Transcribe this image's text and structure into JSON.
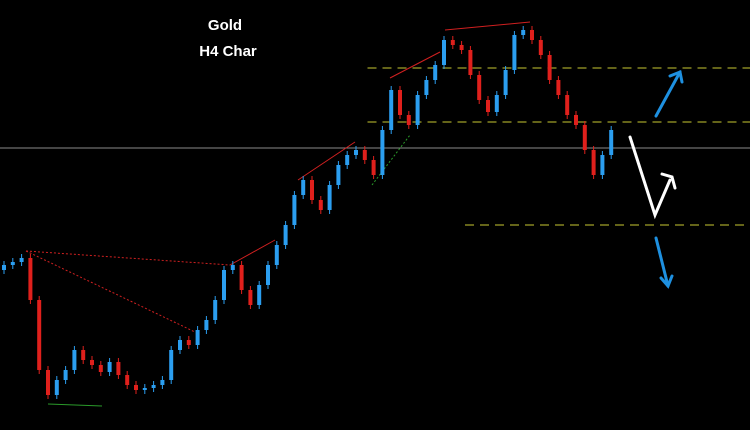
{
  "chart_data": {
    "type": "candlestick",
    "title": "Gold",
    "subtitle": "H4 Char",
    "ylim": [
      0,
      430
    ],
    "up_color": "#2b9ef0",
    "down_color": "#e0201c",
    "open": [
      160,
      165,
      168,
      172,
      130,
      60,
      35,
      50,
      60,
      80,
      70,
      65,
      58,
      68,
      55,
      45,
      40,
      42,
      45,
      50,
      80,
      90,
      85,
      100,
      110,
      130,
      160,
      165,
      140,
      125,
      145,
      165,
      185,
      205,
      235,
      250,
      230,
      220,
      245,
      265,
      275,
      280,
      270,
      255,
      300,
      340,
      315,
      305,
      335,
      350,
      365,
      390,
      385,
      380,
      355,
      330,
      318,
      335,
      360,
      395,
      400,
      390,
      375,
      350,
      335,
      315,
      305,
      280,
      255,
      275
    ],
    "high": [
      169,
      172,
      176,
      176,
      134,
      64,
      54,
      64,
      84,
      84,
      74,
      69,
      72,
      72,
      59,
      49,
      46,
      49,
      54,
      84,
      94,
      94,
      104,
      114,
      134,
      164,
      169,
      169,
      144,
      149,
      169,
      189,
      209,
      239,
      254,
      254,
      234,
      249,
      269,
      279,
      284,
      284,
      274,
      304,
      344,
      344,
      319,
      339,
      354,
      369,
      394,
      394,
      389,
      384,
      359,
      334,
      339,
      364,
      399,
      404,
      404,
      394,
      379,
      354,
      339,
      319,
      309,
      284,
      279,
      304
    ],
    "low": [
      156,
      161,
      164,
      126,
      56,
      31,
      31,
      46,
      56,
      66,
      61,
      54,
      54,
      51,
      41,
      36,
      36,
      38,
      41,
      46,
      76,
      81,
      81,
      96,
      106,
      126,
      156,
      136,
      121,
      121,
      141,
      161,
      181,
      201,
      231,
      226,
      216,
      216,
      241,
      261,
      271,
      266,
      251,
      251,
      296,
      311,
      301,
      301,
      331,
      346,
      361,
      381,
      376,
      351,
      326,
      314,
      314,
      331,
      356,
      391,
      386,
      371,
      346,
      331,
      311,
      301,
      276,
      251,
      251,
      271
    ],
    "close": [
      165,
      168,
      172,
      130,
      60,
      35,
      50,
      60,
      80,
      70,
      65,
      58,
      68,
      55,
      45,
      40,
      42,
      45,
      50,
      80,
      90,
      85,
      100,
      110,
      130,
      160,
      165,
      140,
      125,
      145,
      165,
      185,
      205,
      235,
      250,
      230,
      220,
      245,
      265,
      275,
      280,
      270,
      255,
      300,
      340,
      315,
      305,
      335,
      350,
      365,
      390,
      385,
      380,
      355,
      330,
      318,
      335,
      360,
      395,
      400,
      390,
      375,
      350,
      335,
      315,
      305,
      280,
      255,
      275,
      300
    ],
    "levels": [
      {
        "value": 362,
        "color": "#c8c832",
        "dashed": true,
        "start": 0.49
      },
      {
        "value": 308,
        "color": "#c8c832",
        "dashed": true,
        "start": 0.49
      },
      {
        "value": 205,
        "color": "#c8c832",
        "dashed": true,
        "start": 0.62
      },
      {
        "value": 282,
        "color": "#8a8a8a",
        "dashed": false,
        "start": 0
      }
    ]
  }
}
